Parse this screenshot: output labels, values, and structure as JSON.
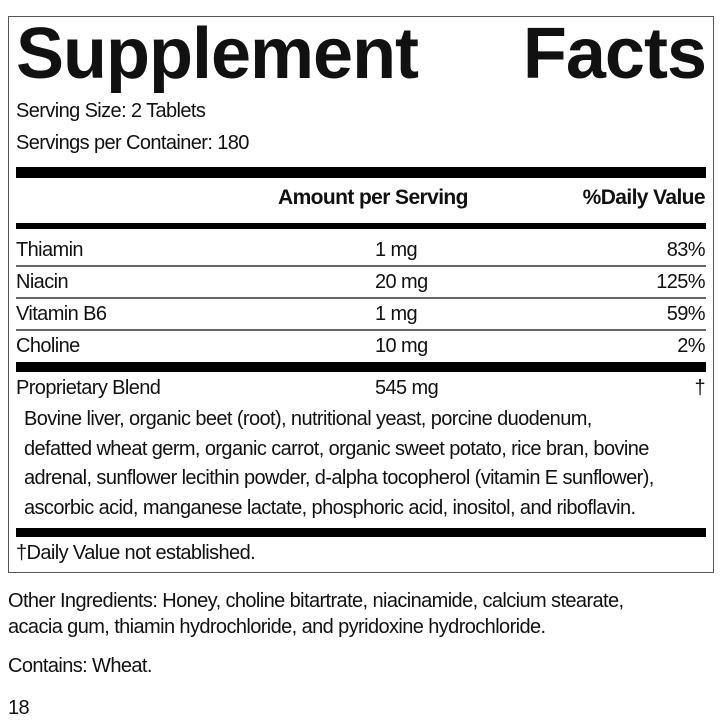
{
  "title": {
    "word1": "Supplement",
    "word2": "Facts"
  },
  "serving_size": "Serving Size: 2 Tablets",
  "servings_per_container": "Servings per Container: 180",
  "headers": {
    "amount": "Amount per Serving",
    "dv": "%Daily Value"
  },
  "rows": [
    {
      "name": "Thiamin",
      "amount": "1 mg",
      "dv": "83%"
    },
    {
      "name": "Niacin",
      "amount": "20 mg",
      "dv": "125%"
    },
    {
      "name": "Vitamin B6",
      "amount": "1 mg",
      "dv": "59%"
    },
    {
      "name": "Choline",
      "amount": "10 mg",
      "dv": "2%"
    }
  ],
  "blend": {
    "name": "Proprietary Blend",
    "amount": "545 mg",
    "dv": "†",
    "lines": [
      "Bovine liver, organic beet (root), nutritional yeast, porcine duodenum,",
      "defatted wheat germ, organic carrot, organic sweet potato, rice bran, bovine",
      "adrenal, sunflower lecithin powder, d-alpha tocopherol (vitamin E sunflower),",
      "ascorbic acid, manganese lactate, phosphoric acid, inositol, and riboflavin."
    ]
  },
  "footnote": "†Daily Value not established.",
  "other_ingredients": [
    "Other Ingredients: Honey, choline bitartrate, niacinamide, calcium stearate,",
    "acacia gum, thiamin hydrochloride, and pyridoxine hydrochloride."
  ],
  "contains": "Contains: Wheat.",
  "page_number": "18"
}
